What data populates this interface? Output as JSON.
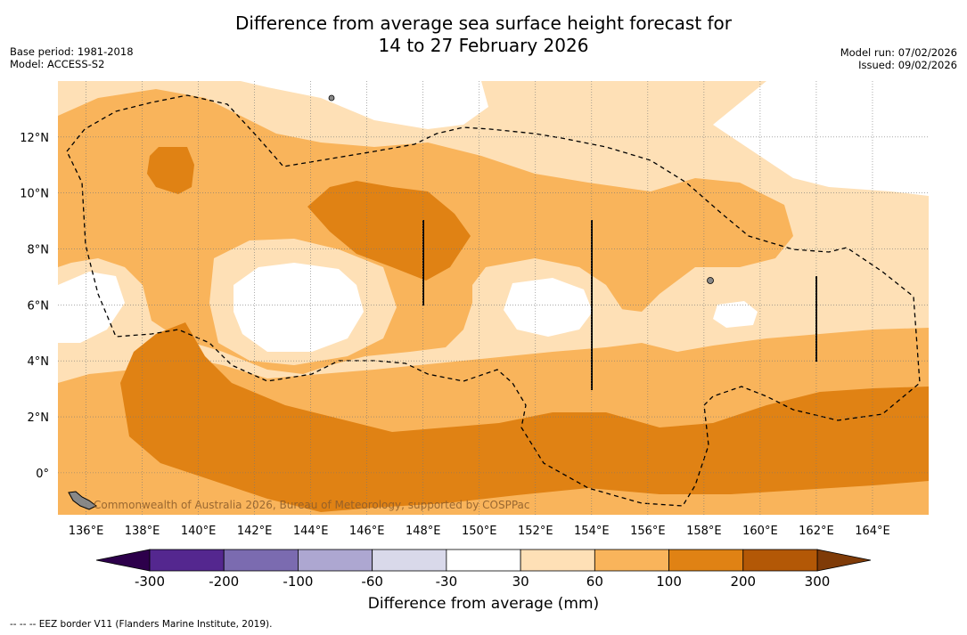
{
  "title_line1": "Difference from average sea surface height forecast for",
  "title_line2": "14 to 27 February 2026",
  "meta": {
    "base_period": "Base period: 1981-2018",
    "model": "Model: ACCESS-S2",
    "model_run": "Model run: 07/02/2026",
    "issued": "Issued: 09/02/2026"
  },
  "map": {
    "lon_labels": [
      "136°E",
      "138°E",
      "140°E",
      "142°E",
      "144°E",
      "146°E",
      "148°E",
      "150°E",
      "152°E",
      "154°E",
      "156°E",
      "158°E",
      "160°E",
      "162°E",
      "164°E"
    ],
    "lat_labels": [
      "12°N",
      "10°N",
      "8°N",
      "6°N",
      "4°N",
      "2°N",
      "0°"
    ],
    "lon_range": [
      135,
      166
    ],
    "lat_range": [
      -1.5,
      14
    ],
    "copyright": "Commonwealth of Australia 2026, Bureau of Meteorology, supported by COSPPac"
  },
  "colorbar": {
    "title": "Difference from average (mm)",
    "tick_labels": [
      "-300",
      "-200",
      "-100",
      "-60",
      "-30",
      "30",
      "60",
      "100",
      "200",
      "300"
    ],
    "colors": [
      "#54278f",
      "#7b6bb0",
      "#ada7d1",
      "#d9d9ea",
      "#ffffff",
      "#fee0b6",
      "#f9b45b",
      "#e08214",
      "#b35806"
    ],
    "extend_low_color": "#2d004b",
    "extend_high_color": "#7f3b08"
  },
  "footnote": "--  --  -- EEZ border V11 (Flanders Marine Institute, 2019)."
}
